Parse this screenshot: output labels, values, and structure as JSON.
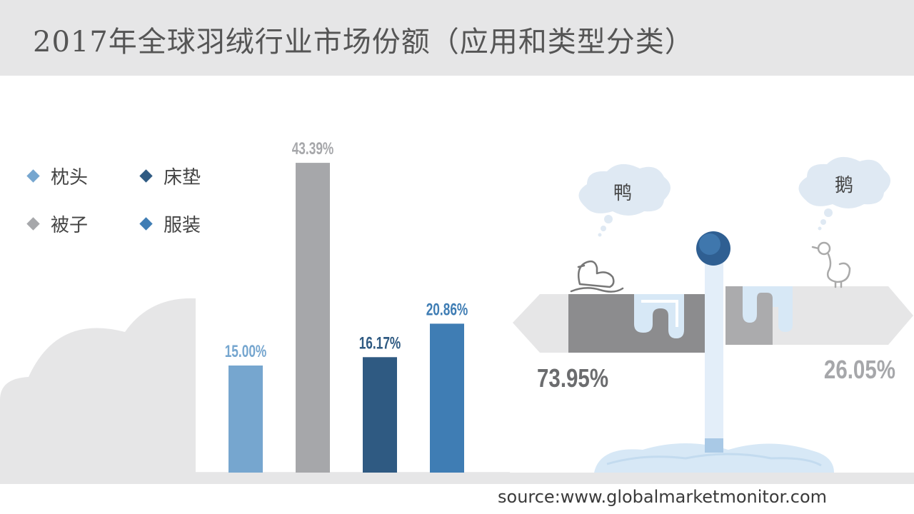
{
  "title": "2017年全球羽绒行业市场份额（应用和类型分类）",
  "source": "source:www.globalmarketmonitor.com",
  "legend": [
    {
      "label": "枕头",
      "color": "#76a6cf"
    },
    {
      "label": "床垫",
      "color": "#2f5a82"
    },
    {
      "label": "被子",
      "color": "#a6a7aa"
    },
    {
      "label": "服装",
      "color": "#3f7db4"
    }
  ],
  "chart_data": [
    {
      "type": "bar",
      "categories": [
        "枕头",
        "被子",
        "床垫",
        "服装"
      ],
      "values": [
        15.0,
        43.39,
        16.17,
        20.86
      ],
      "labels": [
        "15.00%",
        "43.39%",
        "16.17%",
        "20.86%"
      ],
      "colors": [
        "#76a6cf",
        "#a6a7aa",
        "#2f5a82",
        "#3f7db4"
      ],
      "ylim": [
        0,
        50
      ]
    },
    {
      "type": "bar",
      "categories": [
        "鸭",
        "鹅"
      ],
      "values": [
        73.95,
        26.05
      ],
      "labels": [
        "73.95%",
        "26.05%"
      ],
      "colors": [
        "#8c8c8e",
        "#ababad"
      ]
    }
  ]
}
